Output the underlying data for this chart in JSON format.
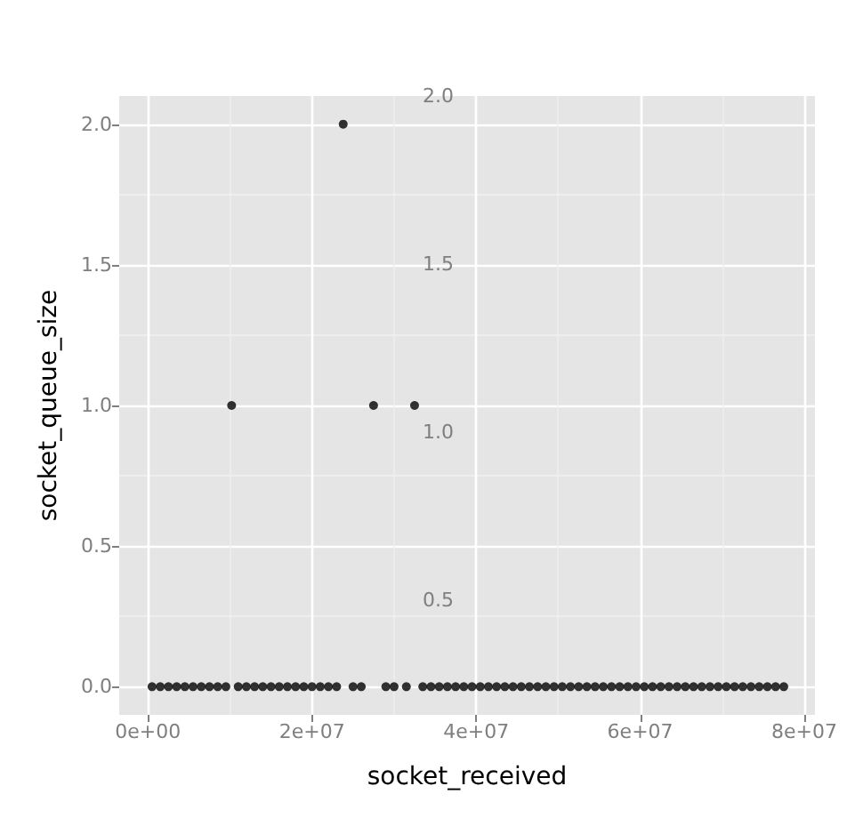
{
  "chart_data": {
    "type": "scatter",
    "xlabel": "socket_received",
    "ylabel": "socket_queue_size",
    "marker": "circle",
    "grid": true,
    "x": [
      500000,
      1500000,
      2500000,
      3500000,
      4500000,
      5500000,
      6500000,
      7500000,
      8500000,
      9500000,
      10200000,
      11000000,
      12000000,
      13000000,
      14000000,
      15000000,
      16000000,
      17000000,
      18000000,
      19000000,
      20000000,
      21000000,
      22000000,
      23000000,
      23800000,
      25000000,
      26000000,
      27500000,
      29000000,
      30000000,
      31500000,
      32500000,
      33500000,
      34500000,
      35500000,
      36500000,
      37500000,
      38500000,
      39500000,
      40500000,
      41500000,
      42500000,
      43500000,
      44500000,
      45500000,
      46500000,
      47500000,
      48500000,
      49500000,
      50500000,
      51500000,
      52500000,
      53500000,
      54500000,
      55500000,
      56500000,
      57500000,
      58500000,
      59500000,
      60500000,
      61500000,
      62500000,
      63500000,
      64500000,
      65500000,
      66500000,
      67500000,
      68500000,
      69500000,
      70500000,
      71500000,
      72500000,
      73500000,
      74500000,
      75500000,
      76500000,
      77500000
    ],
    "series": [
      {
        "color": "#000000",
        "values": [
          0,
          0,
          0,
          0,
          0,
          0,
          0,
          0,
          0,
          0,
          1,
          0,
          0,
          0,
          0,
          0,
          0,
          0,
          0,
          0,
          0,
          0,
          0,
          0,
          2,
          0,
          0,
          1,
          0,
          0,
          0,
          1,
          0,
          0,
          0,
          0,
          0,
          0,
          0,
          0,
          0,
          0,
          0,
          0,
          0,
          0,
          0,
          0,
          0,
          0,
          0,
          0,
          0,
          0,
          0,
          0,
          0,
          0,
          0,
          0,
          0,
          0,
          0,
          0,
          0,
          0,
          0,
          0,
          0,
          0,
          0,
          0,
          0,
          0,
          0,
          0,
          0
        ]
      }
    ],
    "xlim": [
      -3500000,
      81300000
    ],
    "xticks": [
      {
        "value": 0,
        "label": "0e+00"
      },
      {
        "value": 20000000,
        "label": "2e+07"
      },
      {
        "value": 40000000,
        "label": "4e+07"
      },
      {
        "value": 60000000,
        "label": "6e+07"
      },
      {
        "value": 80000000,
        "label": "8e+07"
      }
    ],
    "ylim": [
      -0.1,
      2.1
    ],
    "yticks": [
      {
        "value": 0,
        "label": "0.0"
      },
      {
        "value": 0.5,
        "label": "0.5"
      },
      {
        "value": 1,
        "label": "1.0"
      },
      {
        "value": 1.5,
        "label": "1.5"
      },
      {
        "value": 2,
        "label": "2.0"
      }
    ],
    "y2lim": [
      0.16,
      2.0
    ],
    "y2ticks": [
      {
        "value": 0.5,
        "label": "0.5"
      },
      {
        "value": 1,
        "label": "1.0"
      },
      {
        "value": 1.5,
        "label": "1.5"
      },
      {
        "value": 2,
        "label": "2.0"
      }
    ]
  }
}
